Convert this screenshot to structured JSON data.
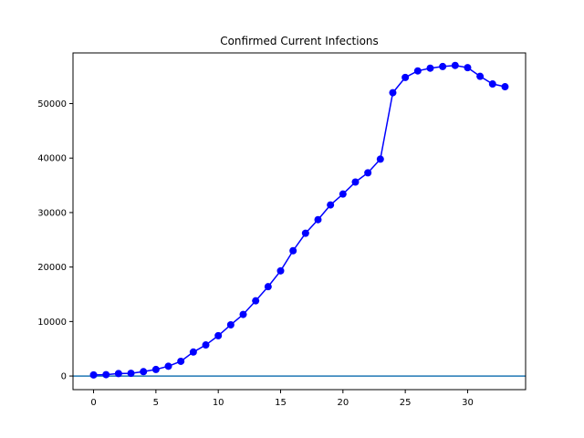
{
  "chart_data": {
    "type": "line",
    "title": "Confirmed Current Infections",
    "xlabel": "",
    "ylabel": "",
    "xlim": [
      -1.65,
      34.65
    ],
    "ylim": [
      -2500,
      59300
    ],
    "x_ticks": [
      0,
      5,
      10,
      15,
      20,
      25,
      30
    ],
    "y_ticks": [
      0,
      10000,
      20000,
      30000,
      40000,
      50000
    ],
    "grid": false,
    "x": [
      0,
      1,
      2,
      3,
      4,
      5,
      6,
      7,
      8,
      9,
      10,
      11,
      12,
      13,
      14,
      15,
      16,
      17,
      18,
      19,
      20,
      21,
      22,
      23,
      24,
      25,
      26,
      27,
      28,
      29,
      30,
      31,
      32,
      33
    ],
    "series": [
      {
        "color": "#0000ff",
        "marker": "circle",
        "values": [
          200,
          250,
          450,
          500,
          800,
          1200,
          1800,
          2700,
          4400,
          5700,
          7400,
          9400,
          11300,
          13800,
          16400,
          19300,
          23000,
          26200,
          28700,
          31400,
          33400,
          35600,
          37300,
          39800,
          52000,
          54800,
          56000,
          56500,
          56800,
          57000,
          56600,
          55000,
          53600,
          53100
        ]
      }
    ],
    "hline": {
      "y": 0,
      "color": "#1f77b4"
    }
  }
}
